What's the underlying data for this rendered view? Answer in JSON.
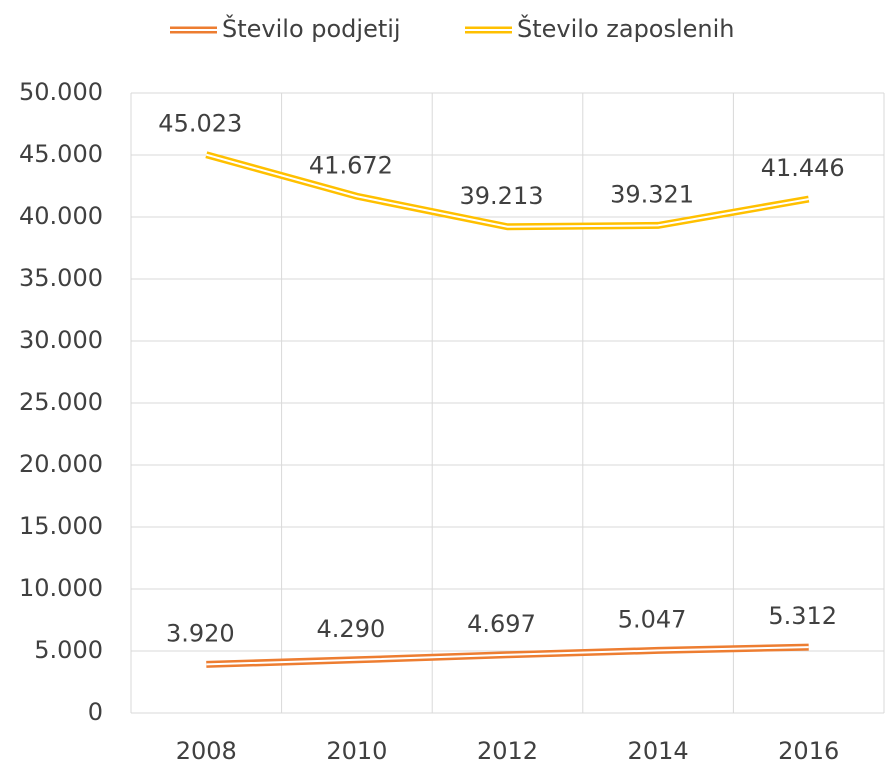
{
  "chart_data": {
    "type": "line",
    "categories": [
      "2008",
      "2010",
      "2012",
      "2014",
      "2016"
    ],
    "series": [
      {
        "name": "Število podjetij",
        "color": "#ED7D31",
        "values": [
          3920,
          4290,
          4697,
          5047,
          5312
        ],
        "value_labels": [
          "3.920",
          "4.290",
          "4.697",
          "5.047",
          "5.312"
        ]
      },
      {
        "name": "Število zaposlenih",
        "color": "#FFC000",
        "values": [
          45023,
          41672,
          39213,
          39321,
          41446
        ],
        "value_labels": [
          "45.023",
          "41.672",
          "39.213",
          "39.321",
          "41.446"
        ]
      }
    ],
    "ylim": [
      0,
      50000
    ],
    "yticks": [
      0,
      {
        "value": 5000,
        "label": "5.000"
      },
      {
        "value": 10000,
        "label": "10.000"
      },
      {
        "value": 15000,
        "label": "15.000"
      },
      {
        "value": 20000,
        "label": "20.000"
      },
      {
        "value": 25000,
        "label": "25.000"
      },
      {
        "value": 30000,
        "label": "30.000"
      },
      {
        "value": 35000,
        "label": "35.000"
      },
      {
        "value": 40000,
        "label": "40.000"
      },
      {
        "value": 45000,
        "label": "45.000"
      },
      {
        "value": 50000,
        "label": "50.000"
      }
    ],
    "grid": true,
    "legend": "top"
  }
}
